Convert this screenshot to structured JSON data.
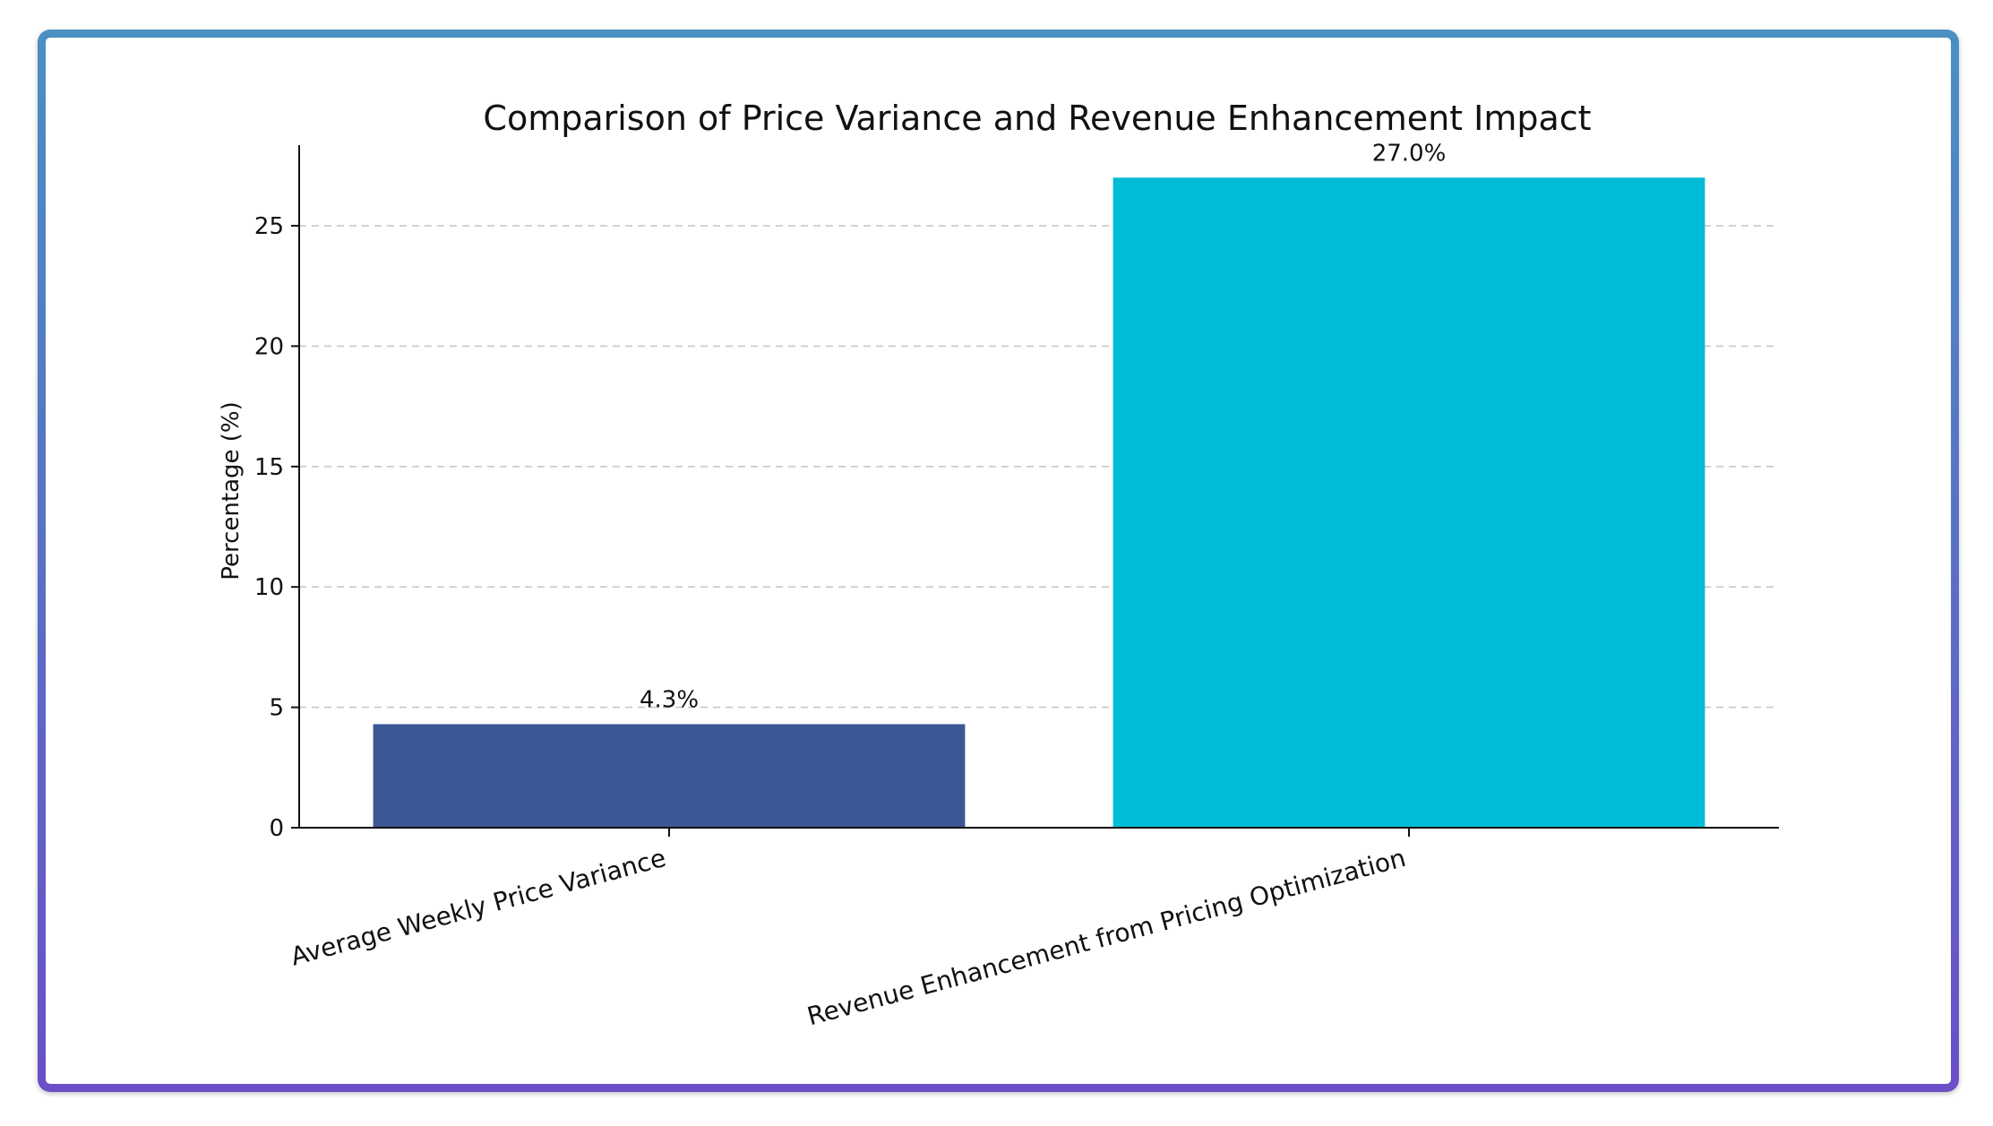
{
  "colors": {
    "frame_top": "#4a90c2",
    "frame_bottom": "#6a4fc8",
    "bar_1": "#3b5795",
    "bar_2": "#00bcd6"
  },
  "chart_data": {
    "type": "bar",
    "title": "Comparison of Price Variance and Revenue Enhancement Impact",
    "xlabel": "",
    "ylabel": "Percentage (%)",
    "categories": [
      "Average Weekly Price Variance",
      "Revenue Enhancement from Pricing Optimization"
    ],
    "values": [
      4.3,
      27.0
    ],
    "value_labels": [
      "4.3%",
      "27.0%"
    ],
    "bar_colors": [
      "#3b5795",
      "#00bcd6"
    ],
    "ylim": [
      0,
      28.35
    ],
    "yticks": [
      0,
      5,
      10,
      15,
      20,
      25
    ],
    "grid": "y, dashed",
    "legend": "none"
  }
}
